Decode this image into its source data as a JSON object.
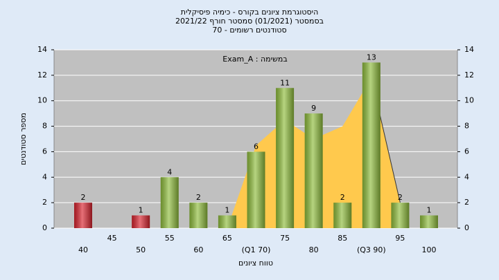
{
  "chart_data": {
    "type": "bar",
    "title": [
      "היסטוגרמת ציונים בקורס - כימיה פיסיקלית",
      "בסמסטר  (01/2021)  סמסטר חורף 2021/22",
      "סטודנטים רשומים - 70"
    ],
    "annotation": "במשימה : Exam_A",
    "x_label": "טווח ציונים",
    "y_label": "מספר סטודנטים",
    "categories": [
      "40",
      "45",
      "50",
      "55",
      "60",
      "65",
      "(Q1 70)",
      "75",
      "80",
      "85",
      "(Q3 90)",
      "95",
      "100"
    ],
    "values": [
      2,
      null,
      1,
      4,
      2,
      1,
      6,
      11,
      9,
      2,
      13,
      2,
      1
    ],
    "colors": [
      "#d9232e",
      null,
      "#d9232e",
      "#8fbd3c",
      "#8fbd3c",
      "#8fbd3c",
      "#8fbd3c",
      "#8fbd3c",
      "#8fbd3c",
      "#8fbd3c",
      "#8fbd3c",
      "#8fbd3c",
      "#8fbd3c"
    ],
    "area": {
      "color": "#ffc94d",
      "values": [
        null,
        null,
        null,
        null,
        null,
        0,
        6.5,
        8.5,
        7,
        8,
        11.8,
        2,
        null
      ]
    },
    "ylim": [
      0,
      14
    ],
    "yticks": [
      0,
      2,
      4,
      6,
      8,
      10,
      12,
      14
    ],
    "y2lim": [
      0,
      14
    ],
    "y2ticks": [
      0,
      2,
      4,
      6,
      8,
      10,
      12,
      14
    ],
    "grid": true
  }
}
